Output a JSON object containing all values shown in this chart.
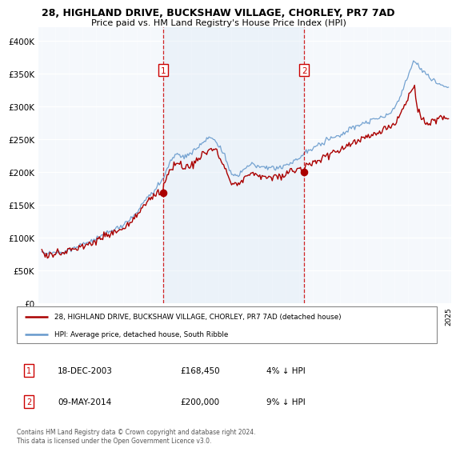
{
  "title": "28, HIGHLAND DRIVE, BUCKSHAW VILLAGE, CHORLEY, PR7 7AD",
  "subtitle": "Price paid vs. HM Land Registry's House Price Index (HPI)",
  "ylim": [
    0,
    420000
  ],
  "yticks": [
    0,
    50000,
    100000,
    150000,
    200000,
    250000,
    300000,
    350000,
    400000
  ],
  "background_color": "#e8f0f8",
  "plot_bg_color": "#f0f4f8",
  "shade_color": "#dae8f5",
  "legend_label_red": "28, HIGHLAND DRIVE, BUCKSHAW VILLAGE, CHORLEY, PR7 7AD (detached house)",
  "legend_label_blue": "HPI: Average price, detached house, South Ribble",
  "annotation1_date": "18-DEC-2003",
  "annotation1_price": "£168,450",
  "annotation1_hpi": "4% ↓ HPI",
  "annotation2_date": "09-MAY-2014",
  "annotation2_price": "£200,000",
  "annotation2_hpi": "9% ↓ HPI",
  "footer": "Contains HM Land Registry data © Crown copyright and database right 2024.\nThis data is licensed under the Open Government Licence v3.0.",
  "color_red": "#aa0000",
  "color_blue": "#6699cc",
  "color_vline": "#cc0000",
  "shade_alpha": 0.35,
  "xlim_left": 1994.75,
  "xlim_right": 2025.2,
  "sale1_x": 2003.96,
  "sale1_y": 168450,
  "sale2_x": 2014.36,
  "sale2_y": 200000
}
